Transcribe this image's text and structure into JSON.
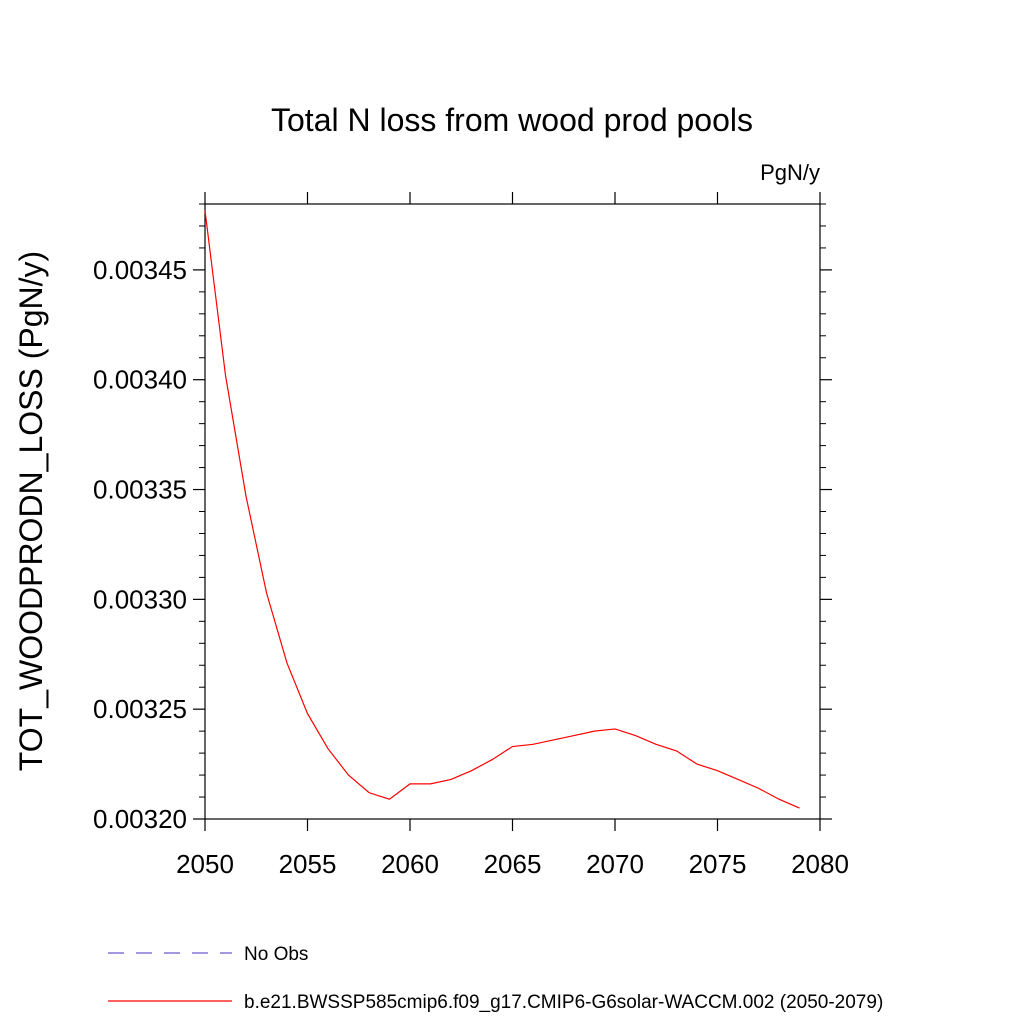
{
  "chart_data": {
    "type": "line",
    "title": "Total N loss from wood prod pools",
    "units_label": "PgN/y",
    "ylabel": "TOT_WOODPRODN_LOSS  (PgN/y)",
    "xlabel": "",
    "xlim": [
      2050,
      2080
    ],
    "ylim": [
      0.0032,
      0.00348
    ],
    "x_ticks": [
      2050,
      2055,
      2060,
      2065,
      2070,
      2075,
      2080
    ],
    "x_tick_labels": [
      "2050",
      "2055",
      "2060",
      "2065",
      "2070",
      "2075",
      "2080"
    ],
    "y_ticks": [
      0.0032,
      0.00325,
      0.0033,
      0.00335,
      0.0034,
      0.00345
    ],
    "y_tick_labels": [
      "0.00320",
      "0.00325",
      "0.00330",
      "0.00335",
      "0.00340",
      "0.00345"
    ],
    "grid": false,
    "legend_position": "bottom",
    "series": [
      {
        "name": "b.e21.BWSSP585cmip6.f09_g17.CMIP6-G6solar-WACCM.002 (2050-2079)",
        "color": "#ff0000",
        "dash": "solid",
        "x": [
          2050,
          2051,
          2052,
          2053,
          2054,
          2055,
          2056,
          2057,
          2058,
          2059,
          2060,
          2061,
          2062,
          2063,
          2064,
          2065,
          2066,
          2067,
          2068,
          2069,
          2070,
          2071,
          2072,
          2073,
          2074,
          2075,
          2076,
          2077,
          2078,
          2079
        ],
        "y": [
          0.003477,
          0.003402,
          0.003347,
          0.003303,
          0.003271,
          0.003248,
          0.003232,
          0.00322,
          0.003212,
          0.003209,
          0.003216,
          0.003216,
          0.003218,
          0.003222,
          0.003227,
          0.003233,
          0.003234,
          0.003236,
          0.003238,
          0.00324,
          0.003241,
          0.003238,
          0.003234,
          0.003231,
          0.003225,
          0.003222,
          0.003218,
          0.003214,
          0.003209,
          0.003205
        ]
      }
    ],
    "legend": [
      {
        "label": "No Obs",
        "color": "#6a5acd",
        "dash": "dashed"
      },
      {
        "label": "b.e21.BWSSP585cmip6.f09_g17.CMIP6-G6solar-WACCM.002 (2050-2079)",
        "color": "#ff0000",
        "dash": "solid"
      }
    ]
  }
}
